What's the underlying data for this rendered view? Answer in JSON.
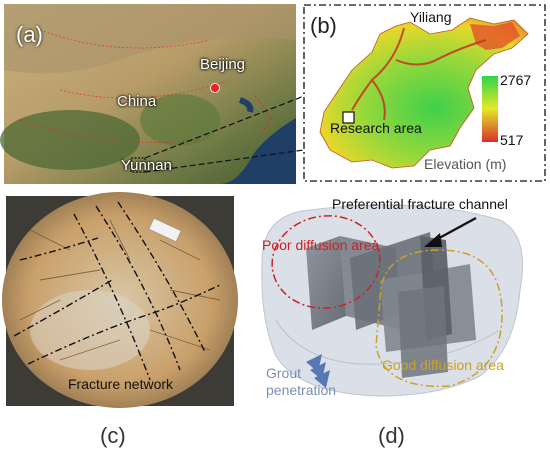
{
  "panel_a": {
    "tag": "(a)",
    "labels": {
      "beijing": "Beijing",
      "china": "China",
      "yunnan": "Yunnan"
    },
    "colors": {
      "ocean": "#1f3f66",
      "land_dry": "#b59a66",
      "land_green": "#4e6a35",
      "marker": "#e8232a"
    }
  },
  "panel_b": {
    "tag": "(b)",
    "labels": {
      "yiliang": "Yiliang",
      "research_area": "Research area",
      "elevation_title": "Elevation (m)"
    },
    "legend": {
      "max": "2767",
      "min": "517"
    },
    "colors": {
      "high": "#2fd44a",
      "mid": "#e6e82a",
      "low": "#d9302a"
    }
  },
  "panel_c": {
    "tag": "(c)",
    "labels": {
      "fracture_network": "Fracture network"
    }
  },
  "panel_d": {
    "tag": "(d)",
    "labels": {
      "preferential_channel": "Preferential fracture channel",
      "poor_diffusion": "Poor diffusion area",
      "good_diffusion": "Good diffusion area",
      "grout_line1": "Grout",
      "grout_line2": "penetration"
    },
    "colors": {
      "poor": "#cc2222",
      "good": "#c9a227",
      "grout": "#7a8fb5"
    }
  }
}
